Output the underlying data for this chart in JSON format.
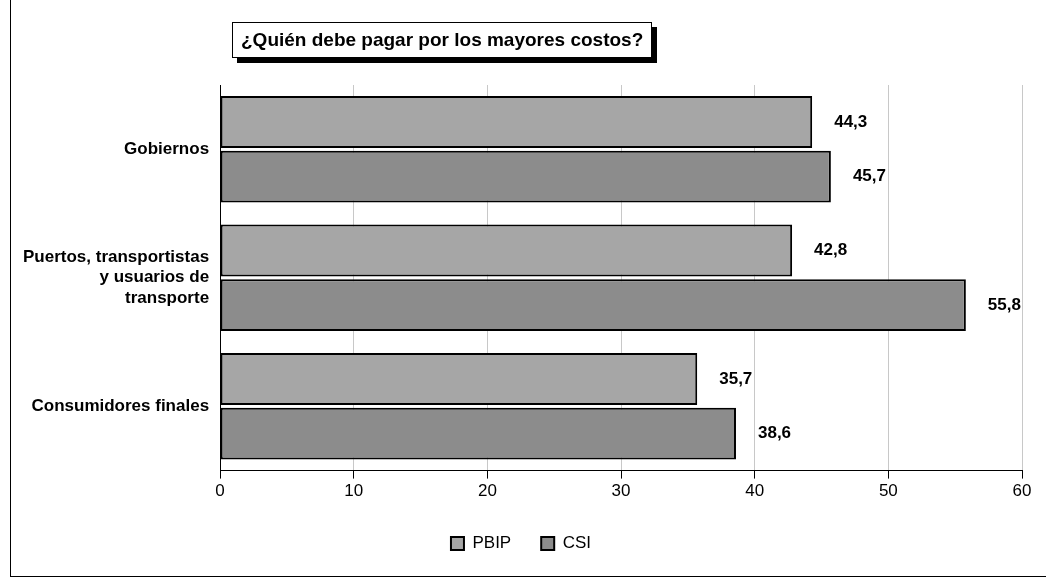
{
  "chart_data": {
    "type": "bar",
    "orientation": "horizontal",
    "title": "¿Quién debe pagar por los mayores costos?",
    "categories": [
      "Gobiernos",
      "Puertos, transportistas y usuarios de transporte",
      "Consumidores finales"
    ],
    "series": [
      {
        "name": "PBIP",
        "color": "#a6a6a6",
        "values": [
          44.3,
          42.8,
          35.7
        ],
        "value_labels": [
          "44,3",
          "42,8",
          "35,7"
        ]
      },
      {
        "name": "CSI",
        "color": "#8c8c8c",
        "values": [
          45.7,
          55.8,
          38.6
        ],
        "value_labels": [
          "45,7",
          "55,8",
          "38,6"
        ]
      }
    ],
    "xlim": [
      0,
      60
    ],
    "xticks": [
      0,
      10,
      20,
      30,
      40,
      50,
      60
    ],
    "grid": "x",
    "legend": "bottom"
  }
}
